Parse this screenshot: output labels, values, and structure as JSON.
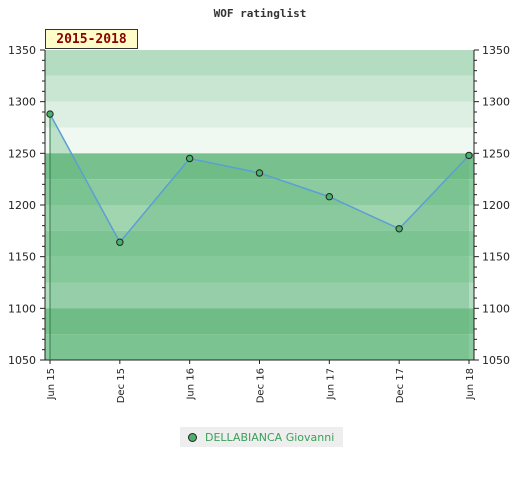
{
  "chart_data": {
    "type": "area",
    "title": "WOF ratinglist",
    "period_label": "2015-2018",
    "x": [
      "Jun 15",
      "Dec 15",
      "Jun 16",
      "Dec 16",
      "Jun 17",
      "Dec 17",
      "Jun 18"
    ],
    "series": [
      {
        "name": "DELLABIANCA Giovanni",
        "values": [
          1288,
          1164,
          1245,
          1231,
          1208,
          1177,
          1248
        ]
      }
    ],
    "ylim": [
      1050,
      1350
    ],
    "yticks": [
      1050,
      1100,
      1150,
      1200,
      1250,
      1300,
      1350
    ],
    "legend_position": "bottom",
    "grid": false,
    "colors": {
      "line": "#5a9fd4",
      "marker": "#4caf6a",
      "legend_text": "#3aa05a"
    }
  }
}
